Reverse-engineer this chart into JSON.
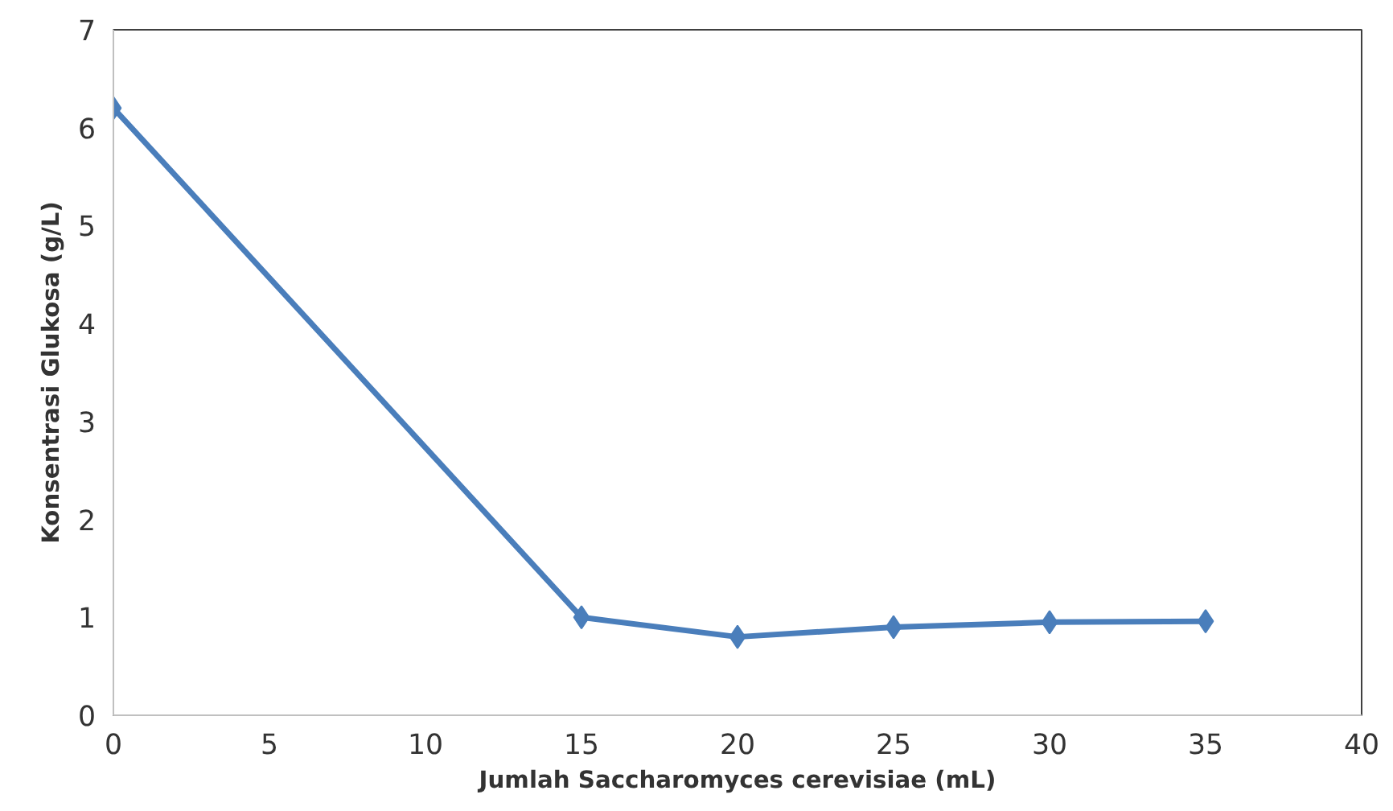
{
  "chart_data": {
    "type": "line",
    "xlabel": "Jumlah Saccharomyces cerevisiae (mL)",
    "ylabel": "Konsentrasi Glukosa (g/L)",
    "x": [
      0,
      15,
      20,
      25,
      30,
      35
    ],
    "series": [
      {
        "color": "#4a7ebb",
        "values": [
          6.2,
          1.0,
          0.8,
          0.9,
          0.95,
          0.96
        ]
      }
    ],
    "xlim": [
      0,
      40
    ],
    "xticks": [
      0,
      5,
      10,
      15,
      20,
      25,
      30,
      35,
      40
    ],
    "ylim": [
      0,
      7
    ],
    "yticks": [
      0,
      1,
      2,
      3,
      4,
      5,
      6,
      7
    ],
    "grid": false,
    "marker": "diamond",
    "line_style": "solid"
  }
}
